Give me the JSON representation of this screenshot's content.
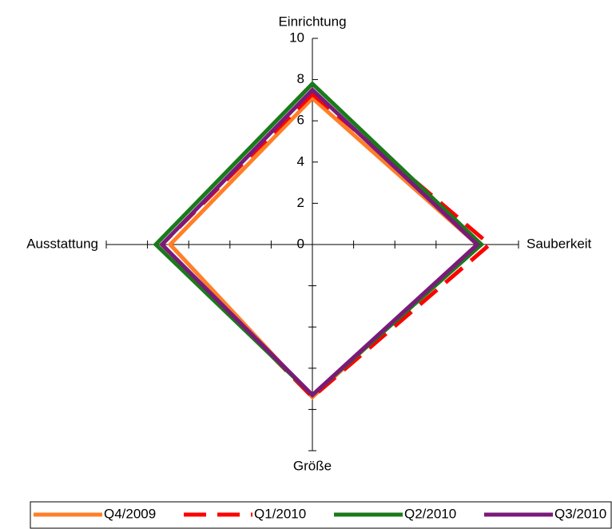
{
  "chart_data": {
    "type": "radar",
    "categories": [
      "Einrichtung",
      "Sauberkeit",
      "Größe",
      "Ausstattung"
    ],
    "ylim": [
      0,
      10
    ],
    "yticks": [
      0,
      2,
      4,
      6,
      8,
      10
    ],
    "legend": "bottom",
    "series": [
      {
        "name": "Q4/2009",
        "color": "#ff7f27",
        "dash": false,
        "values": [
          7.1,
          8.0,
          7.4,
          6.9
        ]
      },
      {
        "name": "Q1/2010",
        "color": "#ff0000",
        "dash": true,
        "values": [
          7.3,
          8.6,
          7.4,
          7.3
        ]
      },
      {
        "name": "Q2/2010",
        "color": "#1a7a1a",
        "dash": false,
        "values": [
          7.8,
          8.2,
          7.3,
          7.6
        ]
      },
      {
        "name": "Q3/2010",
        "color": "#7a1a7a",
        "dash": false,
        "values": [
          7.5,
          8.0,
          7.3,
          7.3
        ]
      }
    ]
  }
}
